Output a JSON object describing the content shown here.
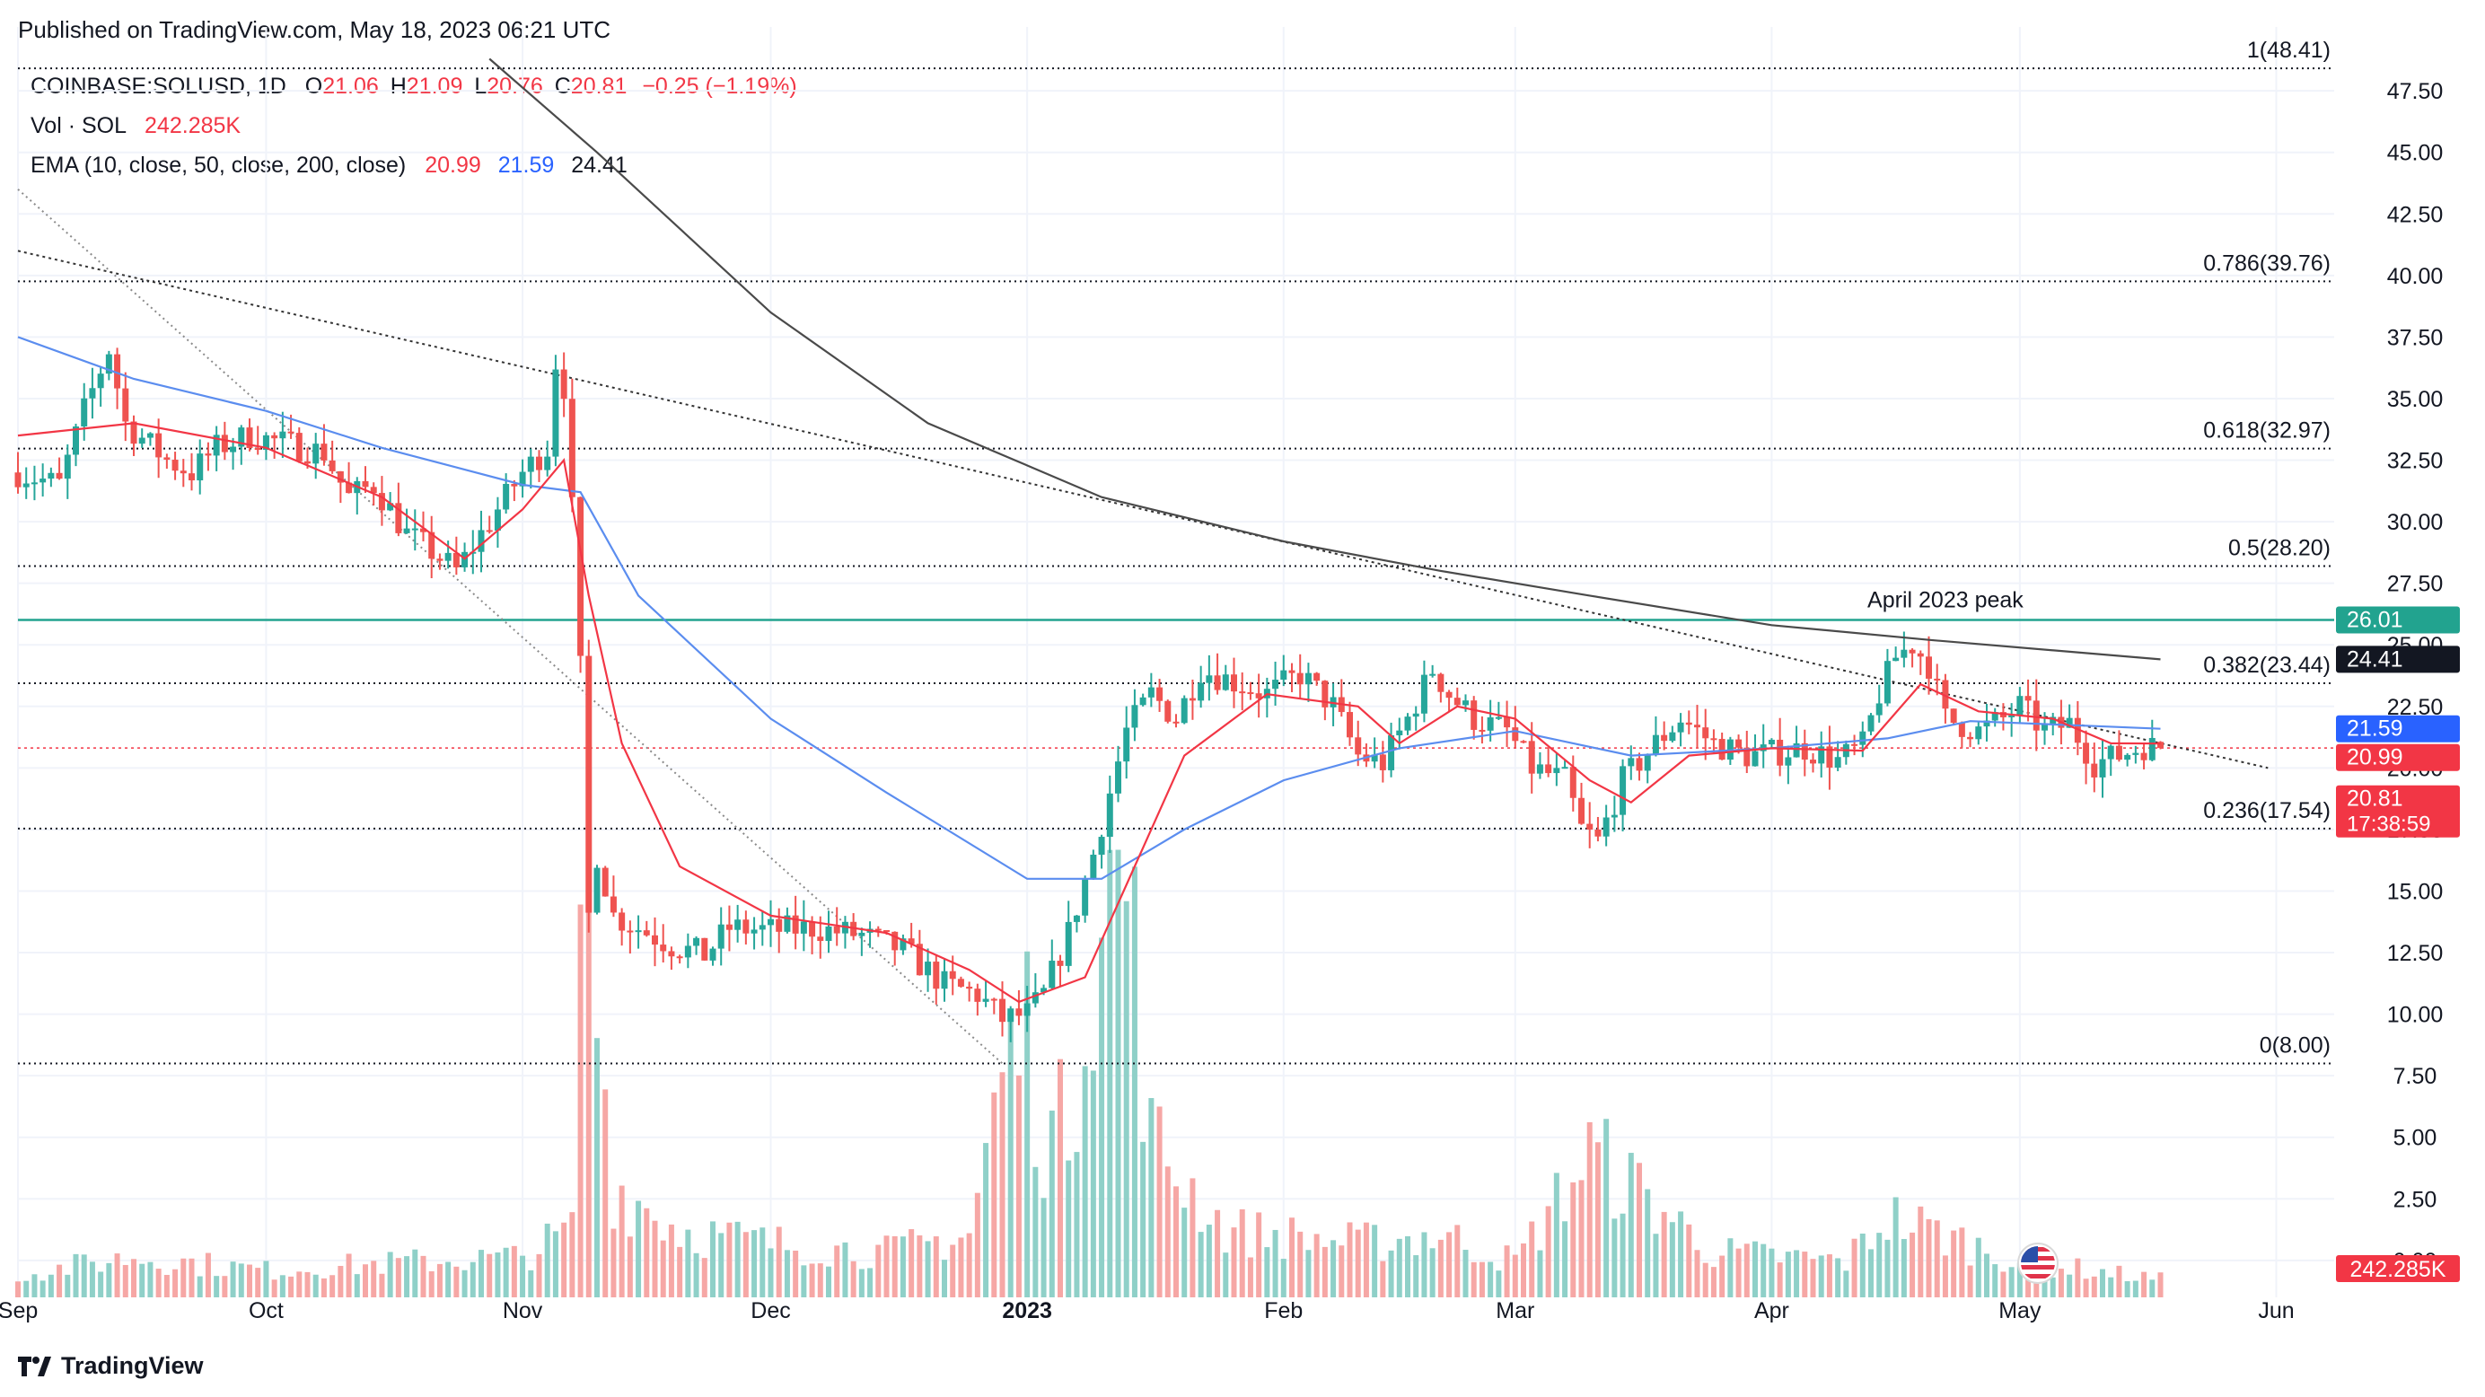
{
  "header": {
    "published": "Published on TradingView.com, May 18, 2023 06:21 UTC"
  },
  "legend": {
    "symbol": "COINBASE:SOLUSD, 1D",
    "open_label": "O",
    "open": "21.06",
    "high_label": "H",
    "high": "21.09",
    "low_label": "L",
    "low": "20.76",
    "close_label": "C",
    "close": "20.81",
    "change": "−0.25 (−1.19%)",
    "volume_label": "Vol · SOL",
    "volume": "242.285K",
    "ema_label": "EMA (10, close, 50, close, 200, close)",
    "ema10": "20.99",
    "ema50": "21.59",
    "ema200": "24.41"
  },
  "footer": {
    "brand": "TradingView"
  },
  "colors": {
    "up": "#26a69a",
    "down": "#ef5350",
    "up_volume": "#8fd0c8",
    "down_volume": "#f6a7a5",
    "ema10": "#f23645",
    "ema50": "#5b8def",
    "ema200": "#4a4a4a",
    "resistance": "#22a38f",
    "trend": "#555555"
  },
  "chart_data": {
    "type": "candlestick",
    "title": "",
    "ylim": [
      -1.5,
      49
    ],
    "y_ticks": [
      "47.50",
      "45.00",
      "42.50",
      "40.00",
      "37.50",
      "35.00",
      "32.50",
      "30.00",
      "27.50",
      "25.00",
      "22.50",
      "20.00",
      "17.50",
      "15.00",
      "12.50",
      "10.00",
      "7.50",
      "5.00",
      "2.50",
      "0.00"
    ],
    "x_ticks": [
      {
        "label": "Sep",
        "date": "2022-09-01"
      },
      {
        "label": "Oct",
        "date": "2022-10-01"
      },
      {
        "label": "Nov",
        "date": "2022-11-01"
      },
      {
        "label": "Dec",
        "date": "2022-12-01"
      },
      {
        "label": "2023",
        "date": "2023-01-01",
        "bold": true
      },
      {
        "label": "Feb",
        "date": "2023-02-01"
      },
      {
        "label": "Mar",
        "date": "2023-03-01"
      },
      {
        "label": "Apr",
        "date": "2023-04-01"
      },
      {
        "label": "May",
        "date": "2023-05-01"
      },
      {
        "label": "Jun",
        "date": "2023-06-01"
      }
    ],
    "date_range": [
      "2022-09-01",
      "2023-06-08"
    ],
    "fibonacci": [
      {
        "label": "1(48.41)",
        "value": 48.41
      },
      {
        "label": "0.786(39.76)",
        "value": 39.76
      },
      {
        "label": "0.618(32.97)",
        "value": 32.97
      },
      {
        "label": "0.5(28.20)",
        "value": 28.2
      },
      {
        "label": "0.382(23.44)",
        "value": 23.44
      },
      {
        "label": "0.236(17.54)",
        "value": 17.54
      },
      {
        "label": "0(8.00)",
        "value": 8.0
      }
    ],
    "horizontal_line": {
      "value": 26.01,
      "annotation": "April 2023 peak"
    },
    "trendlines": [
      {
        "from": [
          "2022-09-01",
          43.5
        ],
        "to": [
          "2022-12-29",
          8.0
        ],
        "style": "dotted-gray"
      },
      {
        "from": [
          "2022-09-01",
          41.0
        ],
        "to": [
          "2023-05-31",
          20.0
        ],
        "style": "dotted-dark"
      }
    ],
    "price_labels": [
      {
        "value": 26.01,
        "text": "26.01",
        "color": "#22a38f"
      },
      {
        "value": 24.41,
        "text": "24.41",
        "color": "#131722"
      },
      {
        "value": 21.59,
        "text": "21.59",
        "color": "#2962ff"
      },
      {
        "value": 20.99,
        "text": "20.99",
        "color": "#f23645"
      },
      {
        "value": 20.81,
        "text": "20.81",
        "sub": "17:38:59",
        "color": "#f23645"
      }
    ],
    "volume_label": {
      "text": "242.285K",
      "color": "#f23645"
    },
    "current_price": 20.81,
    "close_series": [
      [
        "2022-09-01",
        32.0
      ],
      [
        "2022-09-06",
        31.5
      ],
      [
        "2022-09-09",
        34.5
      ],
      [
        "2022-09-12",
        37.0
      ],
      [
        "2022-09-14",
        34.0
      ],
      [
        "2022-09-19",
        32.5
      ],
      [
        "2022-09-22",
        32.0
      ],
      [
        "2022-09-25",
        33.0
      ],
      [
        "2022-09-29",
        33.5
      ],
      [
        "2022-10-03",
        33.2
      ],
      [
        "2022-10-08",
        32.8
      ],
      [
        "2022-10-11",
        31.0
      ],
      [
        "2022-10-14",
        31.5
      ],
      [
        "2022-10-18",
        29.5
      ],
      [
        "2022-10-21",
        28.8
      ],
      [
        "2022-10-24",
        28.0
      ],
      [
        "2022-10-28",
        30.0
      ],
      [
        "2022-11-01",
        32.0
      ],
      [
        "2022-11-04",
        33.0
      ],
      [
        "2022-11-05",
        36.5
      ],
      [
        "2022-11-06",
        35.5
      ],
      [
        "2022-11-07",
        30.5
      ],
      [
        "2022-11-08",
        24.0
      ],
      [
        "2022-11-09",
        14.0
      ],
      [
        "2022-11-10",
        16.5
      ],
      [
        "2022-11-12",
        14.0
      ],
      [
        "2022-11-15",
        13.5
      ],
      [
        "2022-11-19",
        12.8
      ],
      [
        "2022-11-23",
        12.4
      ],
      [
        "2022-11-26",
        13.5
      ],
      [
        "2022-12-01",
        13.4
      ],
      [
        "2022-12-06",
        13.5
      ],
      [
        "2022-12-12",
        13.2
      ],
      [
        "2022-12-17",
        12.6
      ],
      [
        "2022-12-22",
        11.2
      ],
      [
        "2022-12-26",
        10.8
      ],
      [
        "2022-12-29",
        9.8
      ],
      [
        "2023-01-01",
        10.0
      ],
      [
        "2023-01-03",
        10.8
      ],
      [
        "2023-01-06",
        13.3
      ],
      [
        "2023-01-09",
        16.5
      ],
      [
        "2023-01-13",
        21.5
      ],
      [
        "2023-01-16",
        23.0
      ],
      [
        "2023-01-19",
        22.0
      ],
      [
        "2023-01-22",
        24.0
      ],
      [
        "2023-01-26",
        23.5
      ],
      [
        "2023-01-30",
        23.0
      ],
      [
        "2023-02-03",
        23.8
      ],
      [
        "2023-02-07",
        22.5
      ],
      [
        "2023-02-10",
        20.5
      ],
      [
        "2023-02-13",
        20.2
      ],
      [
        "2023-02-16",
        22.0
      ],
      [
        "2023-02-19",
        24.0
      ],
      [
        "2023-02-21",
        23.0
      ],
      [
        "2023-02-24",
        22.0
      ],
      [
        "2023-02-28",
        21.5
      ],
      [
        "2023-03-03",
        20.0
      ],
      [
        "2023-03-07",
        19.5
      ],
      [
        "2023-03-09",
        17.5
      ],
      [
        "2023-03-11",
        17.0
      ],
      [
        "2023-03-14",
        19.5
      ],
      [
        "2023-03-18",
        21.0
      ],
      [
        "2023-03-21",
        22.0
      ],
      [
        "2023-03-25",
        21.0
      ],
      [
        "2023-03-29",
        20.5
      ],
      [
        "2023-04-01",
        20.6
      ],
      [
        "2023-04-05",
        20.8
      ],
      [
        "2023-04-09",
        20.3
      ],
      [
        "2023-04-12",
        20.9
      ],
      [
        "2023-04-14",
        23.0
      ],
      [
        "2023-04-16",
        24.5
      ],
      [
        "2023-04-18",
        25.0
      ],
      [
        "2023-04-20",
        24.2
      ],
      [
        "2023-04-22",
        22.0
      ],
      [
        "2023-04-26",
        21.5
      ],
      [
        "2023-04-29",
        22.0
      ],
      [
        "2023-05-01",
        22.5
      ],
      [
        "2023-05-04",
        21.5
      ],
      [
        "2023-05-07",
        21.8
      ],
      [
        "2023-05-10",
        20.2
      ],
      [
        "2023-05-13",
        20.5
      ],
      [
        "2023-05-16",
        20.9
      ],
      [
        "2023-05-18",
        20.81
      ]
    ],
    "ema10": [
      [
        "2022-09-01",
        33.5
      ],
      [
        "2022-09-15",
        34.0
      ],
      [
        "2022-10-01",
        33.0
      ],
      [
        "2022-10-15",
        31.0
      ],
      [
        "2022-10-25",
        28.5
      ],
      [
        "2022-11-01",
        30.5
      ],
      [
        "2022-11-06",
        32.5
      ],
      [
        "2022-11-09",
        27.0
      ],
      [
        "2022-11-13",
        21.0
      ],
      [
        "2022-11-20",
        16.0
      ],
      [
        "2022-12-01",
        14.0
      ],
      [
        "2022-12-15",
        13.3
      ],
      [
        "2022-12-25",
        11.8
      ],
      [
        "2022-12-31",
        10.5
      ],
      [
        "2023-01-08",
        11.5
      ],
      [
        "2023-01-14",
        16.0
      ],
      [
        "2023-01-20",
        20.5
      ],
      [
        "2023-01-30",
        23.0
      ],
      [
        "2023-02-10",
        22.5
      ],
      [
        "2023-02-15",
        21.0
      ],
      [
        "2023-02-22",
        22.5
      ],
      [
        "2023-03-01",
        22.0
      ],
      [
        "2023-03-10",
        19.5
      ],
      [
        "2023-03-15",
        18.6
      ],
      [
        "2023-03-22",
        20.5
      ],
      [
        "2023-04-01",
        20.8
      ],
      [
        "2023-04-12",
        20.7
      ],
      [
        "2023-04-19",
        23.4
      ],
      [
        "2023-04-26",
        22.3
      ],
      [
        "2023-05-05",
        22.0
      ],
      [
        "2023-05-12",
        21.0
      ],
      [
        "2023-05-18",
        20.99
      ]
    ],
    "ema50": [
      [
        "2022-09-01",
        37.5
      ],
      [
        "2022-09-15",
        35.8
      ],
      [
        "2022-10-01",
        34.5
      ],
      [
        "2022-10-15",
        33.0
      ],
      [
        "2022-11-01",
        31.5
      ],
      [
        "2022-11-08",
        31.2
      ],
      [
        "2022-11-15",
        27.0
      ],
      [
        "2022-12-01",
        22.0
      ],
      [
        "2022-12-15",
        19.0
      ],
      [
        "2023-01-01",
        15.5
      ],
      [
        "2023-01-10",
        15.5
      ],
      [
        "2023-01-20",
        17.5
      ],
      [
        "2023-02-01",
        19.5
      ],
      [
        "2023-02-15",
        20.8
      ],
      [
        "2023-03-01",
        21.5
      ],
      [
        "2023-03-15",
        20.5
      ],
      [
        "2023-04-01",
        20.8
      ],
      [
        "2023-04-15",
        21.2
      ],
      [
        "2023-04-25",
        21.9
      ],
      [
        "2023-05-10",
        21.7
      ],
      [
        "2023-05-18",
        21.59
      ]
    ],
    "ema200": [
      [
        "2022-10-28",
        48.8
      ],
      [
        "2022-11-10",
        45.0
      ],
      [
        "2022-12-01",
        38.5
      ],
      [
        "2022-12-20",
        34.0
      ],
      [
        "2023-01-10",
        31.0
      ],
      [
        "2023-02-01",
        29.2
      ],
      [
        "2023-02-20",
        28.0
      ],
      [
        "2023-03-10",
        27.0
      ],
      [
        "2023-04-01",
        25.8
      ],
      [
        "2023-04-20",
        25.2
      ],
      [
        "2023-05-18",
        24.41
      ]
    ],
    "volume_profile": [
      [
        "2022-09-01",
        0.5
      ],
      [
        "2022-09-15",
        0.9
      ],
      [
        "2022-10-01",
        0.6
      ],
      [
        "2022-10-20",
        0.8
      ],
      [
        "2022-11-01",
        0.9
      ],
      [
        "2022-11-07",
        1.5
      ],
      [
        "2022-11-08",
        9.5
      ],
      [
        "2022-11-09",
        11.5
      ],
      [
        "2022-11-10",
        6.5
      ],
      [
        "2022-11-12",
        2.5
      ],
      [
        "2022-11-20",
        1.5
      ],
      [
        "2022-12-01",
        1.2
      ],
      [
        "2022-12-15",
        1.0
      ],
      [
        "2022-12-25",
        1.4
      ],
      [
        "2022-12-29",
        5.0
      ],
      [
        "2023-01-01",
        6.0
      ],
      [
        "2023-01-03",
        3.5
      ],
      [
        "2023-01-06",
        4.0
      ],
      [
        "2023-01-09",
        8.0
      ],
      [
        "2023-01-13",
        9.5
      ],
      [
        "2023-01-16",
        3.5
      ],
      [
        "2023-01-25",
        1.5
      ],
      [
        "2023-02-10",
        1.2
      ],
      [
        "2023-02-20",
        1.4
      ],
      [
        "2023-03-01",
        0.8
      ],
      [
        "2023-03-10",
        3.2
      ],
      [
        "2023-03-15",
        2.5
      ],
      [
        "2023-03-25",
        1.0
      ],
      [
        "2023-04-10",
        0.8
      ],
      [
        "2023-04-15",
        1.8
      ],
      [
        "2023-04-20",
        1.5
      ],
      [
        "2023-05-01",
        0.8
      ],
      [
        "2023-05-18",
        0.4
      ]
    ]
  }
}
